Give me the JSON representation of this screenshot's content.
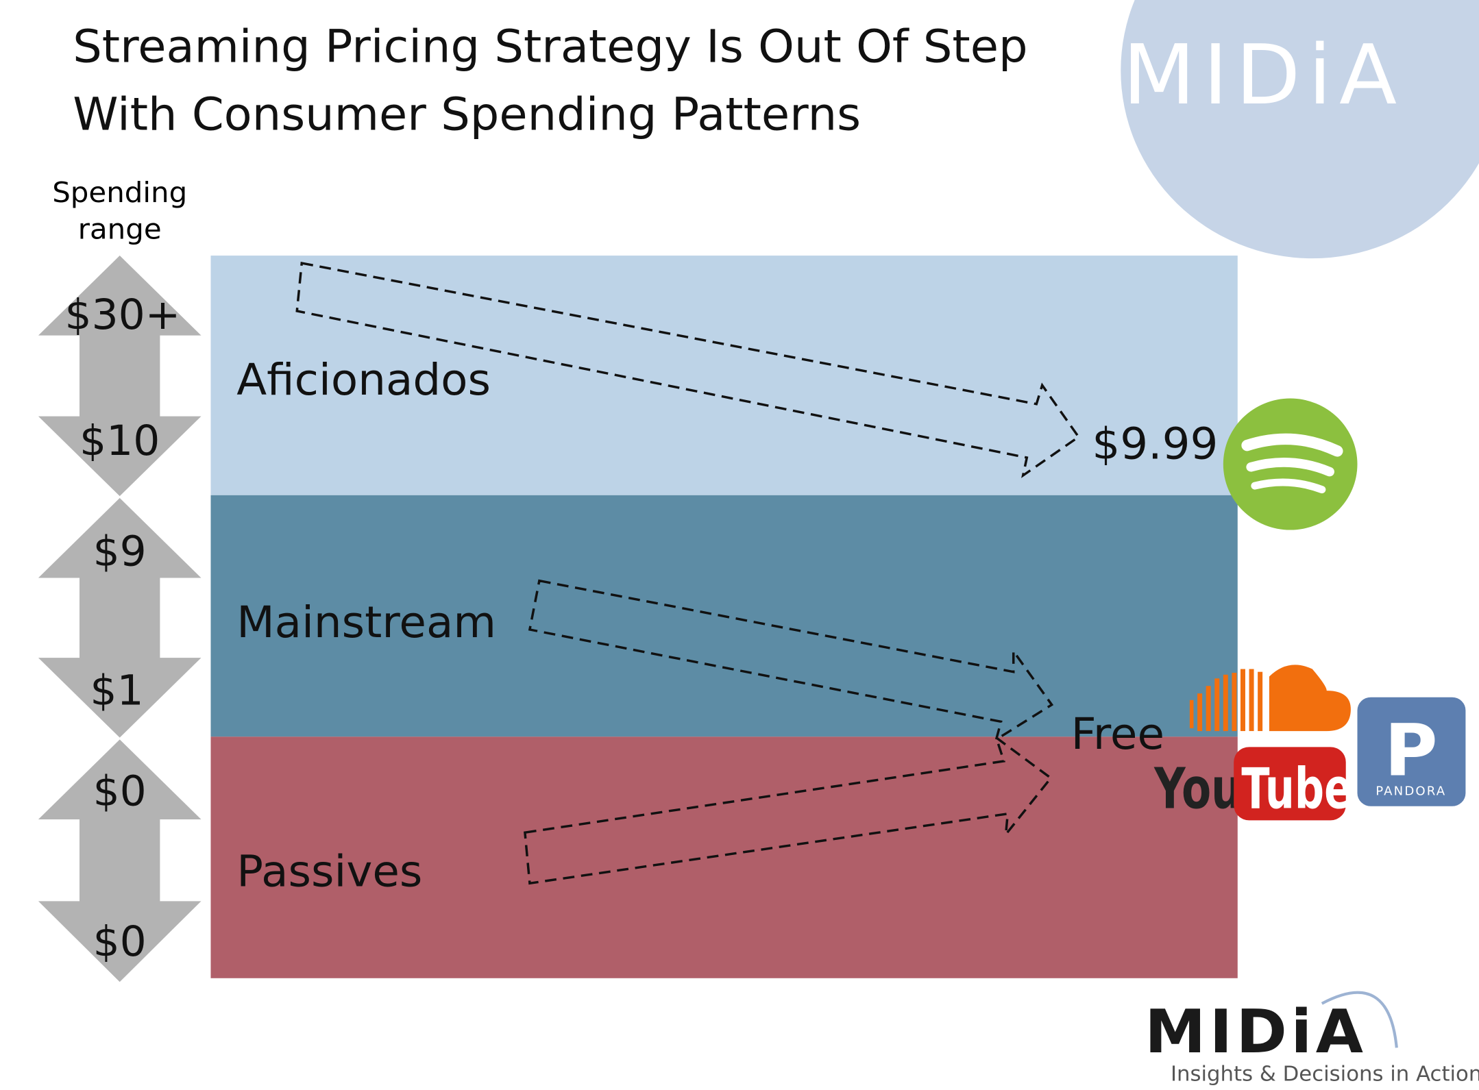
{
  "header": {
    "title_lines": [
      "Streaming Pricing Strategy Is Out Of Step",
      "With Consumer Spending Patterns"
    ],
    "logo": "MIDiA"
  },
  "axis": {
    "label_lines": [
      "Spending",
      "range"
    ],
    "ranges": [
      {
        "top": "$30+",
        "bottom": "$10"
      },
      {
        "top": "$9",
        "bottom": "$1"
      },
      {
        "top": "$0",
        "bottom": "$0"
      }
    ]
  },
  "segments": [
    "Aficionados",
    "Mainstream",
    "Passives"
  ],
  "prices": [
    "$9.99",
    "Free"
  ],
  "logos": {
    "youtube_left": "You",
    "youtube_right": "Tube",
    "pandora_letter": "P",
    "pandora_name": "PANDORA"
  },
  "footer": {
    "logo": "MIDiA",
    "tagline": "Insights & Decisions in Action"
  }
}
